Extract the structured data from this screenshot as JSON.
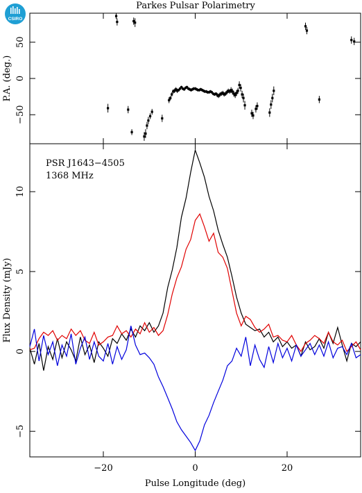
{
  "title": "Parkes Pulsar Polarimetry",
  "logo_text": "CSIRO",
  "colors": {
    "total": "#000000",
    "linear": "#e00000",
    "circular": "#0000dd",
    "logo": "#1f9fd4"
  },
  "chart_data": [
    {
      "type": "scatter",
      "panel": "position-angle",
      "ylabel": "P.A. (deg.)",
      "xlim": [
        -36,
        36
      ],
      "ylim": [
        -90,
        90
      ],
      "yticks": [
        -50,
        0,
        50
      ],
      "xticks": [
        -20,
        0,
        20
      ],
      "points": [
        [
          -19.0,
          -41,
          6
        ],
        [
          -17.2,
          86,
          4
        ],
        [
          -17.0,
          78,
          5
        ],
        [
          -14.6,
          -43,
          5
        ],
        [
          -13.8,
          -74,
          4
        ],
        [
          -13.4,
          79,
          5
        ],
        [
          -13.1,
          77,
          6
        ],
        [
          -11.1,
          -80,
          6
        ],
        [
          -10.8,
          -76,
          6
        ],
        [
          -10.5,
          -65,
          5
        ],
        [
          -10.2,
          -58,
          5
        ],
        [
          -9.8,
          -52,
          4
        ],
        [
          -9.4,
          -46,
          4
        ],
        [
          -7.2,
          -55,
          5
        ],
        [
          -5.7,
          -30,
          4
        ],
        [
          -5.4,
          -27,
          3
        ],
        [
          -5.1,
          -22,
          3
        ],
        [
          -4.8,
          -18,
          3
        ],
        [
          -4.5,
          -17,
          3
        ],
        [
          -4.2,
          -15,
          3
        ],
        [
          -3.9,
          -17,
          3
        ],
        [
          -3.6,
          -16,
          2
        ],
        [
          -3.3,
          -14,
          2
        ],
        [
          -3.0,
          -12,
          2
        ],
        [
          -2.7,
          -14,
          2
        ],
        [
          -2.4,
          -15,
          2
        ],
        [
          -2.1,
          -13,
          2
        ],
        [
          -1.8,
          -12,
          2
        ],
        [
          -1.5,
          -14,
          2
        ],
        [
          -1.2,
          -15,
          2
        ],
        [
          -0.9,
          -16,
          2
        ],
        [
          -0.6,
          -15,
          2
        ],
        [
          -0.3,
          -14,
          2
        ],
        [
          0.0,
          -14,
          2
        ],
        [
          0.3,
          -15,
          2
        ],
        [
          0.6,
          -16,
          2
        ],
        [
          0.9,
          -16,
          2
        ],
        [
          1.2,
          -15,
          2
        ],
        [
          1.5,
          -16,
          2
        ],
        [
          1.8,
          -17,
          2
        ],
        [
          2.1,
          -18,
          2
        ],
        [
          2.4,
          -18,
          2
        ],
        [
          2.7,
          -19,
          2
        ],
        [
          3.0,
          -19,
          2
        ],
        [
          3.3,
          -18,
          2
        ],
        [
          3.6,
          -19,
          2
        ],
        [
          3.9,
          -21,
          2
        ],
        [
          4.2,
          -22,
          2
        ],
        [
          4.5,
          -21,
          2
        ],
        [
          4.8,
          -23,
          3
        ],
        [
          5.1,
          -24,
          3
        ],
        [
          5.4,
          -22,
          3
        ],
        [
          5.7,
          -21,
          3
        ],
        [
          6.0,
          -20,
          3
        ],
        [
          6.3,
          -22,
          3
        ],
        [
          6.6,
          -21,
          3
        ],
        [
          6.9,
          -19,
          3
        ],
        [
          7.2,
          -17,
          3
        ],
        [
          7.5,
          -18,
          3
        ],
        [
          7.8,
          -16,
          4
        ],
        [
          8.1,
          -18,
          4
        ],
        [
          8.4,
          -21,
          4
        ],
        [
          8.7,
          -23,
          4
        ],
        [
          9.0,
          -20,
          4
        ],
        [
          9.3,
          -17,
          4
        ],
        [
          9.6,
          -9,
          5
        ],
        [
          9.9,
          -13,
          5
        ],
        [
          10.2,
          -22,
          5
        ],
        [
          10.5,
          -27,
          6
        ],
        [
          10.8,
          -37,
          6
        ],
        [
          12.3,
          -48,
          5
        ],
        [
          12.6,
          -51,
          5
        ],
        [
          13.2,
          -42,
          5
        ],
        [
          13.5,
          -38,
          5
        ],
        [
          16.2,
          -47,
          6
        ],
        [
          16.5,
          -36,
          6
        ],
        [
          16.8,
          -27,
          6
        ],
        [
          17.1,
          -17,
          6
        ],
        [
          24.0,
          72,
          5
        ],
        [
          24.3,
          66,
          5
        ],
        [
          27.0,
          -29,
          5
        ],
        [
          34.0,
          53,
          5
        ],
        [
          34.6,
          51,
          5
        ]
      ]
    },
    {
      "type": "line",
      "panel": "flux-density",
      "xlabel": "Pulse Longitude (deg)",
      "ylabel": "Flux Density (mJy)",
      "annotation": [
        "PSR J1643−4505",
        "1368 MHz"
      ],
      "xlim": [
        -36,
        36
      ],
      "ylim": [
        -6.6,
        13.0
      ],
      "xticks": [
        -20,
        0,
        20
      ],
      "yticks": [
        -5,
        0,
        5,
        10
      ],
      "x": [
        -36,
        -35,
        -34,
        -33,
        -32,
        -31,
        -30,
        -29,
        -28,
        -27,
        -26,
        -25,
        -24,
        -23,
        -22,
        -21,
        -20,
        -19,
        -18,
        -17,
        -16,
        -15,
        -14,
        -13,
        -12,
        -11,
        -10,
        -9,
        -8,
        -7,
        -6,
        -5,
        -4,
        -3,
        -2,
        -1,
        0,
        1,
        2,
        3,
        4,
        5,
        6,
        7,
        8,
        9,
        10,
        11,
        12,
        13,
        14,
        15,
        16,
        17,
        18,
        19,
        20,
        21,
        22,
        23,
        24,
        25,
        26,
        27,
        28,
        29,
        30,
        31,
        32,
        33,
        34,
        35,
        36
      ],
      "series": [
        {
          "key": "total",
          "values": [
            0.2,
            -0.8,
            0.5,
            -1.2,
            0.3,
            -0.5,
            0.8,
            -0.4,
            0.6,
            0.1,
            -0.6,
            0.9,
            -0.2,
            0.4,
            -0.7,
            0.6,
            0.2,
            -0.3,
            0.8,
            0.5,
            1.1,
            0.7,
            1.4,
            0.9,
            1.6,
            1.3,
            1.8,
            1.2,
            1.6,
            2.4,
            4.0,
            5.1,
            6.5,
            8.4,
            9.6,
            11.2,
            12.6,
            11.8,
            10.9,
            9.7,
            8.8,
            7.6,
            6.7,
            5.9,
            4.7,
            3.4,
            2.4,
            1.7,
            1.5,
            1.3,
            1.4,
            0.9,
            1.2,
            0.6,
            0.9,
            0.3,
            0.6,
            0.2,
            0.4,
            -0.3,
            0.6,
            0.1,
            0.3,
            0.8,
            0.2,
            1.2,
            0.5,
            1.5,
            0.4,
            -0.6,
            0.5,
            0.3,
            0.6
          ]
        },
        {
          "key": "linear",
          "values": [
            0.1,
            0.2,
            0.8,
            1.2,
            1.0,
            1.3,
            0.7,
            1.0,
            0.8,
            1.4,
            1.0,
            1.3,
            0.7,
            0.5,
            1.2,
            0.4,
            0.6,
            0.9,
            1.0,
            1.6,
            1.1,
            1.3,
            0.9,
            1.4,
            1.1,
            1.8,
            1.2,
            1.5,
            1.0,
            1.3,
            2.3,
            3.6,
            4.6,
            5.3,
            6.4,
            7.0,
            8.2,
            8.6,
            7.8,
            6.9,
            7.4,
            6.2,
            5.9,
            5.2,
            3.8,
            2.4,
            1.6,
            2.2,
            2.0,
            1.5,
            1.2,
            1.4,
            1.7,
            0.9,
            1.0,
            0.7,
            0.6,
            1.0,
            0.4,
            0.0,
            0.5,
            0.7,
            1.0,
            0.8,
            0.5,
            1.2,
            0.6,
            0.4,
            0.7,
            0.0,
            0.3,
            0.6,
            0.1
          ]
        },
        {
          "key": "circular",
          "values": [
            0.3,
            1.4,
            -0.6,
            1.0,
            -0.2,
            0.6,
            -0.9,
            0.4,
            -0.3,
            1.1,
            -0.8,
            0.2,
            0.9,
            -0.5,
            0.6,
            -0.3,
            -0.6,
            0.5,
            -0.8,
            0.3,
            -0.5,
            0.1,
            1.6,
            0.4,
            -0.2,
            -0.1,
            -0.4,
            -0.8,
            -1.6,
            -2.2,
            -2.9,
            -3.6,
            -4.4,
            -4.9,
            -5.3,
            -5.7,
            -6.2,
            -5.6,
            -4.6,
            -4.0,
            -3.2,
            -2.5,
            -1.8,
            -0.9,
            -0.6,
            0.2,
            -0.3,
            0.9,
            -0.9,
            0.4,
            -0.5,
            -1.0,
            0.3,
            -0.7,
            0.5,
            -0.4,
            0.2,
            -0.6,
            0.4,
            -0.3,
            0.1,
            0.5,
            -0.2,
            0.4,
            -0.3,
            0.6,
            -0.4,
            0.2,
            0.3,
            -0.2,
            0.5,
            -0.4,
            -0.2
          ]
        }
      ]
    }
  ]
}
